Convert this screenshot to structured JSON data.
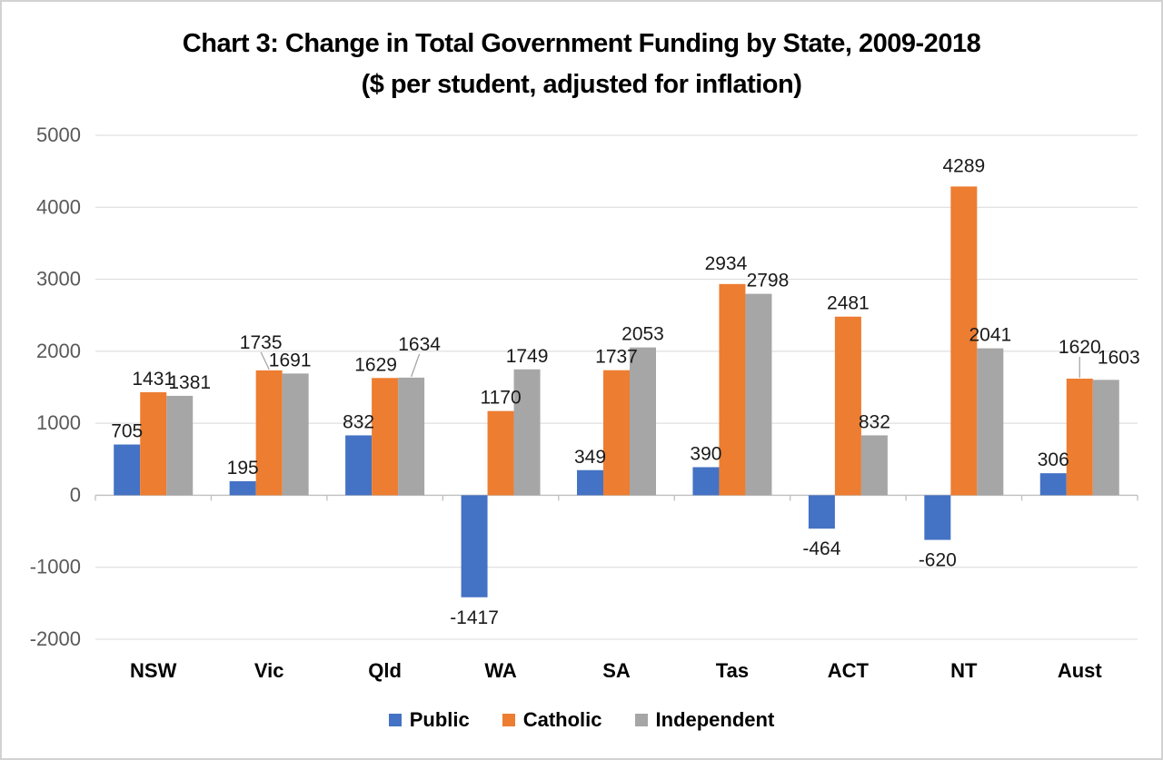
{
  "chart_data": {
    "type": "bar",
    "title": "Chart 3: Change in Total Government Funding by State, 2009-2018",
    "subtitle": "($ per student, adjusted for inflation)",
    "categories": [
      "NSW",
      "Vic",
      "Qld",
      "WA",
      "SA",
      "Tas",
      "ACT",
      "NT",
      "Aust"
    ],
    "series": [
      {
        "name": "Public",
        "color": "#4472C4",
        "values": [
          705,
          195,
          832,
          -1417,
          349,
          390,
          -464,
          -620,
          306
        ]
      },
      {
        "name": "Catholic",
        "color": "#ED7D31",
        "values": [
          1431,
          1735,
          1629,
          1170,
          1737,
          2934,
          2481,
          4289,
          1620
        ]
      },
      {
        "name": "Independent",
        "color": "#A6A6A6",
        "values": [
          1381,
          1691,
          1634,
          1749,
          2053,
          2798,
          832,
          2041,
          1603
        ]
      }
    ],
    "y_axis": {
      "min": -2000,
      "max": 5000,
      "step": 1000,
      "ticks": [
        5000,
        4000,
        3000,
        2000,
        1000,
        0,
        -1000,
        -2000
      ]
    },
    "grid": true,
    "data_labels": true,
    "legend_position": "bottom",
    "style": {
      "gridline_color": "#D8D8D8",
      "axis_color": "#BFBFBF",
      "tick_label_color": "#595959",
      "data_label_color": "#1a1a1a",
      "category_label_color": "#000000",
      "leader_line_color": "#A6A6A6"
    },
    "label_overrides": {
      "NSW-Independent": {
        "dx": 11
      },
      "Vic-Catholic": {
        "dx": -9,
        "dy": -16,
        "leader": true
      },
      "Vic-Independent": {
        "dx": -6
      },
      "Qld-Catholic": {
        "dx": -10
      },
      "Qld-Independent": {
        "dx": 9,
        "dy": -22,
        "leader": true
      },
      "Tas-Catholic": {
        "dx": -7,
        "dy": -8
      },
      "Tas-Independent": {
        "dx": 10
      },
      "NT-Catholic": {
        "dy": -8
      },
      "Aust-Catholic": {
        "dy": -20,
        "leader": true
      },
      "Aust-Independent": {
        "dx": 14,
        "dy": -10
      }
    }
  }
}
